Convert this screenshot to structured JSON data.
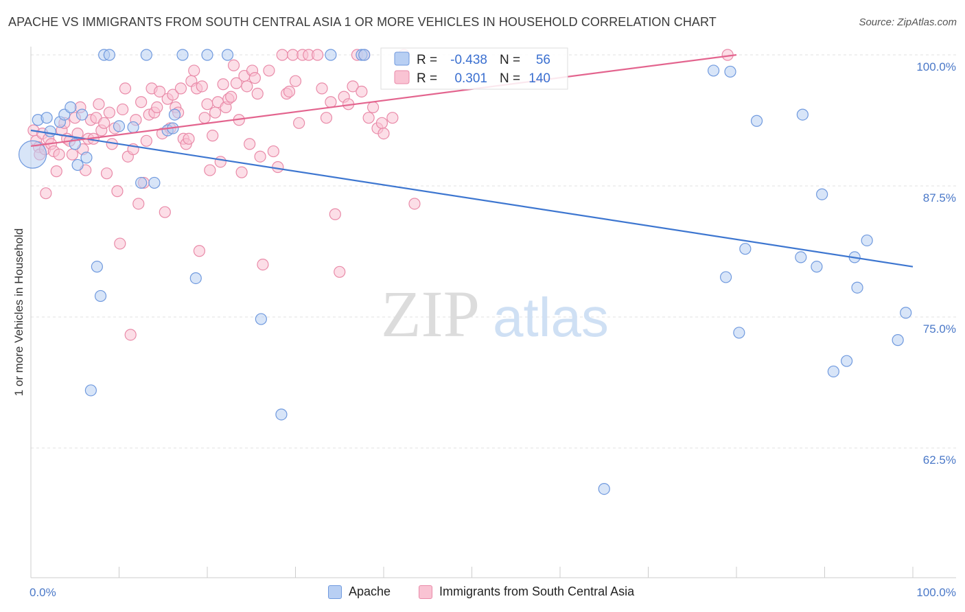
{
  "header": {
    "title": "APACHE VS IMMIGRANTS FROM SOUTH CENTRAL ASIA 1 OR MORE VEHICLES IN HOUSEHOLD CORRELATION CHART",
    "source": "Source: ZipAtlas.com"
  },
  "watermark": {
    "zip": "ZIP",
    "atlas": "atlas"
  },
  "legend": {
    "r_label": "R =",
    "n_label": "N =",
    "rows": [
      {
        "name": "Apache",
        "r": "-0.438",
        "n": "56",
        "fill": "#b8cff3",
        "stroke": "#6f99de"
      },
      {
        "name": "Immigrants from South Central Asia",
        "r": "0.301",
        "n": "140",
        "fill": "#f9c3d3",
        "stroke": "#e98aa8"
      }
    ]
  },
  "colors": {
    "apache": "#6f99de",
    "apache_fill": "#b8cff3",
    "asia": "#e98aa8",
    "asia_fill": "#f9c3d3",
    "apache_line": "#3d76d0",
    "asia_line": "#e3648e",
    "axis_text": "#4a78c8"
  },
  "chart_data": {
    "type": "scatter",
    "title": "APACHE VS IMMIGRANTS FROM SOUTH CENTRAL ASIA 1 OR MORE VEHICLES IN HOUSEHOLD CORRELATION CHART",
    "xlabel": "",
    "ylabel": "1 or more Vehicles in Household",
    "xlim": [
      0,
      100
    ],
    "ylim": [
      50,
      101
    ],
    "x_tick_labels": [
      "0.0%",
      "100.0%"
    ],
    "y_ticks": [
      {
        "value": 100.0,
        "label": "100.0%"
      },
      {
        "value": 87.5,
        "label": "87.5%"
      },
      {
        "value": 75.0,
        "label": "75.0%"
      },
      {
        "value": 62.5,
        "label": "62.5%"
      }
    ],
    "grid": true,
    "legend_position": "top-center",
    "series": [
      {
        "name": "Apache",
        "r": -0.438,
        "n": 56,
        "trend": [
          [
            0,
            92.8
          ],
          [
            100,
            79.8
          ]
        ],
        "points": [
          [
            0.2,
            90.5,
            2.5
          ],
          [
            0.8,
            93.8,
            1
          ],
          [
            1.8,
            94.0,
            1
          ],
          [
            2.2,
            92.7,
            1
          ],
          [
            3.3,
            93.6,
            1
          ],
          [
            3.8,
            94.3,
            1
          ],
          [
            4.5,
            95.0,
            1
          ],
          [
            5.0,
            91.5,
            1
          ],
          [
            5.3,
            89.5,
            1
          ],
          [
            5.8,
            94.3,
            1
          ],
          [
            6.3,
            90.2,
            1
          ],
          [
            7.5,
            79.8,
            1
          ],
          [
            7.9,
            77.0,
            1
          ],
          [
            6.8,
            68.0,
            1
          ],
          [
            8.3,
            100.0,
            1
          ],
          [
            8.9,
            100.0,
            1
          ],
          [
            10.0,
            93.2,
            1
          ],
          [
            11.6,
            93.1,
            1
          ],
          [
            12.5,
            87.8,
            1
          ],
          [
            13.1,
            100.0,
            1
          ],
          [
            14.0,
            87.8,
            1
          ],
          [
            15.5,
            92.8,
            1
          ],
          [
            16.1,
            93.0,
            1
          ],
          [
            16.3,
            94.3,
            1
          ],
          [
            17.2,
            100.0,
            1
          ],
          [
            18.7,
            78.7,
            1
          ],
          [
            20.0,
            100.0,
            1
          ],
          [
            22.3,
            100.0,
            1
          ],
          [
            26.1,
            74.8,
            1
          ],
          [
            28.4,
            65.7,
            1
          ],
          [
            34.0,
            100.0,
            1
          ],
          [
            37.5,
            100.0,
            1
          ],
          [
            37.8,
            100.0,
            1
          ],
          [
            65.0,
            58.6,
            1
          ],
          [
            77.4,
            98.5,
            1
          ],
          [
            78.8,
            78.8,
            1
          ],
          [
            79.3,
            98.4,
            1
          ],
          [
            80.3,
            73.5,
            1
          ],
          [
            81.0,
            81.5,
            1
          ],
          [
            82.3,
            93.7,
            1
          ],
          [
            87.5,
            94.3,
            1
          ],
          [
            87.3,
            80.7,
            1
          ],
          [
            89.1,
            79.8,
            1
          ],
          [
            89.7,
            86.7,
            1
          ],
          [
            91.0,
            69.8,
            1
          ],
          [
            92.5,
            70.8,
            1
          ],
          [
            93.4,
            80.7,
            1
          ],
          [
            93.7,
            77.8,
            1
          ],
          [
            94.8,
            82.3,
            1
          ],
          [
            98.3,
            72.8,
            1
          ],
          [
            99.2,
            75.4,
            1
          ]
        ]
      },
      {
        "name": "Immigrants from South Central Asia",
        "r": 0.301,
        "n": 140,
        "trend": [
          [
            0,
            91.3
          ],
          [
            80,
            100.0
          ]
        ],
        "points": [
          [
            0.3,
            92.8,
            1
          ],
          [
            0.6,
            91.8,
            1
          ],
          [
            0.9,
            91.2,
            1
          ],
          [
            1.0,
            90.5,
            1
          ],
          [
            1.3,
            92.5,
            1
          ],
          [
            1.6,
            91.0,
            1
          ],
          [
            1.7,
            86.8,
            1
          ],
          [
            2.0,
            92.0,
            1
          ],
          [
            2.3,
            91.5,
            1
          ],
          [
            2.6,
            90.8,
            1
          ],
          [
            2.9,
            88.9,
            1
          ],
          [
            3.2,
            90.5,
            1
          ],
          [
            3.5,
            92.8,
            1
          ],
          [
            3.8,
            93.5,
            1
          ],
          [
            4.1,
            92.0,
            1
          ],
          [
            4.4,
            91.8,
            1
          ],
          [
            4.7,
            90.5,
            1
          ],
          [
            5.0,
            94.0,
            1
          ],
          [
            5.3,
            92.5,
            1
          ],
          [
            5.6,
            95.0,
            1
          ],
          [
            5.9,
            91.0,
            1
          ],
          [
            6.2,
            89.0,
            1
          ],
          [
            6.5,
            92.0,
            1
          ],
          [
            6.8,
            93.8,
            1
          ],
          [
            7.1,
            92.0,
            1
          ],
          [
            7.4,
            94.0,
            1
          ],
          [
            7.7,
            95.3,
            1
          ],
          [
            8.0,
            92.8,
            1
          ],
          [
            8.3,
            93.5,
            1
          ],
          [
            8.6,
            88.7,
            1
          ],
          [
            8.9,
            94.5,
            1
          ],
          [
            9.2,
            91.5,
            1
          ],
          [
            9.5,
            93.0,
            1
          ],
          [
            9.8,
            87.0,
            1
          ],
          [
            10.1,
            82.0,
            1
          ],
          [
            10.4,
            94.8,
            1
          ],
          [
            10.7,
            96.8,
            1
          ],
          [
            11.0,
            90.3,
            1
          ],
          [
            11.3,
            73.3,
            1
          ],
          [
            11.6,
            91.0,
            1
          ],
          [
            11.9,
            93.8,
            1
          ],
          [
            12.2,
            85.8,
            1
          ],
          [
            12.5,
            95.5,
            1
          ],
          [
            12.8,
            87.8,
            1
          ],
          [
            13.1,
            91.8,
            1
          ],
          [
            13.4,
            94.3,
            1
          ],
          [
            13.7,
            96.8,
            1
          ],
          [
            14.0,
            94.5,
            1
          ],
          [
            14.3,
            95.0,
            1
          ],
          [
            14.6,
            96.5,
            1
          ],
          [
            14.9,
            92.5,
            1
          ],
          [
            15.2,
            85.0,
            1
          ],
          [
            15.5,
            95.8,
            1
          ],
          [
            15.8,
            93.0,
            1
          ],
          [
            16.1,
            96.2,
            1
          ],
          [
            16.4,
            95.0,
            1
          ],
          [
            16.7,
            94.5,
            1
          ],
          [
            17.0,
            96.8,
            1
          ],
          [
            17.3,
            92.0,
            1
          ],
          [
            17.6,
            91.5,
            1
          ],
          [
            17.9,
            92.0,
            1
          ],
          [
            18.2,
            97.5,
            1
          ],
          [
            18.5,
            98.5,
            1
          ],
          [
            18.8,
            96.8,
            1
          ],
          [
            19.1,
            81.3,
            1
          ],
          [
            19.4,
            97.0,
            1
          ],
          [
            19.7,
            94.0,
            1
          ],
          [
            20.0,
            95.3,
            1
          ],
          [
            20.3,
            89.0,
            1
          ],
          [
            20.6,
            92.3,
            1
          ],
          [
            20.9,
            94.5,
            1
          ],
          [
            21.2,
            95.5,
            1
          ],
          [
            21.5,
            89.8,
            1
          ],
          [
            21.8,
            97.2,
            1
          ],
          [
            22.1,
            95.0,
            1
          ],
          [
            22.4,
            95.8,
            1
          ],
          [
            22.7,
            96.0,
            1
          ],
          [
            23.0,
            99.0,
            1
          ],
          [
            23.3,
            97.3,
            1
          ],
          [
            23.6,
            93.8,
            1
          ],
          [
            23.9,
            88.8,
            1
          ],
          [
            24.2,
            98.0,
            1
          ],
          [
            24.5,
            97.0,
            1
          ],
          [
            24.8,
            91.5,
            1
          ],
          [
            25.1,
            98.5,
            1
          ],
          [
            25.4,
            97.8,
            1
          ],
          [
            25.7,
            96.3,
            1
          ],
          [
            26.0,
            90.3,
            1
          ],
          [
            26.3,
            80.0,
            1
          ],
          [
            27.0,
            98.5,
            1
          ],
          [
            27.5,
            90.8,
            1
          ],
          [
            28.0,
            89.3,
            1
          ],
          [
            28.5,
            100.0,
            1
          ],
          [
            29.0,
            96.3,
            1
          ],
          [
            29.3,
            96.5,
            1
          ],
          [
            29.7,
            100.0,
            1
          ],
          [
            30.0,
            97.5,
            1
          ],
          [
            30.4,
            93.5,
            1
          ],
          [
            30.8,
            100.0,
            1
          ],
          [
            31.5,
            100.0,
            1
          ],
          [
            32.5,
            100.0,
            1
          ],
          [
            33.0,
            96.8,
            1
          ],
          [
            33.5,
            94.0,
            1
          ],
          [
            34.0,
            95.5,
            1
          ],
          [
            34.5,
            84.8,
            1
          ],
          [
            35.0,
            79.3,
            1
          ],
          [
            35.5,
            96.0,
            1
          ],
          [
            36.0,
            95.3,
            1
          ],
          [
            36.5,
            97.0,
            1
          ],
          [
            37.0,
            100.0,
            1
          ],
          [
            37.5,
            96.5,
            1
          ],
          [
            37.8,
            100.0,
            1
          ],
          [
            38.3,
            94.0,
            1
          ],
          [
            38.8,
            95.0,
            1
          ],
          [
            39.3,
            93.0,
            1
          ],
          [
            39.8,
            93.5,
            1
          ],
          [
            40.0,
            92.5,
            1
          ],
          [
            41.0,
            94.0,
            1
          ],
          [
            42.3,
            100.0,
            1
          ],
          [
            43.5,
            85.8,
            1
          ],
          [
            79.0,
            100.0,
            1
          ]
        ]
      }
    ]
  }
}
